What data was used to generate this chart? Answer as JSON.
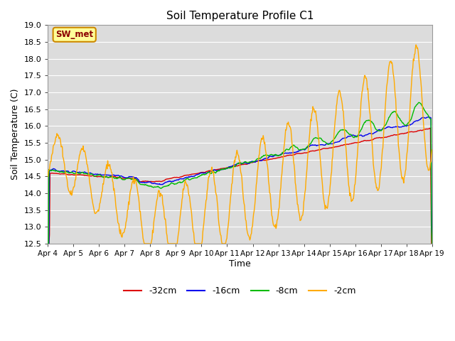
{
  "title": "Soil Temperature Profile C1",
  "xlabel": "Time",
  "ylabel": "Soil Temperature (C)",
  "ylim": [
    12.5,
    19.0
  ],
  "yticks": [
    12.5,
    13.0,
    13.5,
    14.0,
    14.5,
    15.0,
    15.5,
    16.0,
    16.5,
    17.0,
    17.5,
    18.0,
    18.5,
    19.0
  ],
  "xtick_labels": [
    "Apr 4",
    "Apr 5",
    "Apr 6",
    "Apr 7",
    "Apr 8",
    "Apr 9",
    "Apr 10",
    "Apr 11",
    "Apr 12",
    "Apr 13",
    "Apr 14",
    "Apr 15",
    "Apr 16",
    "Apr 17",
    "Apr 18",
    "Apr 19"
  ],
  "colors": {
    "red": "#dd0000",
    "blue": "#0000ee",
    "green": "#00bb00",
    "orange": "#ffaa00"
  },
  "legend_labels": [
    "-32cm",
    "-16cm",
    "-8cm",
    "-2cm"
  ],
  "legend_colors": [
    "#dd0000",
    "#0000ee",
    "#00bb00",
    "#ffaa00"
  ],
  "annotation_text": "SW_met",
  "plot_bg_color": "#dcdcdc",
  "grid_color": "#c8c8c8",
  "line_width": 1.0,
  "n_days": 15,
  "n_per_day": 48
}
